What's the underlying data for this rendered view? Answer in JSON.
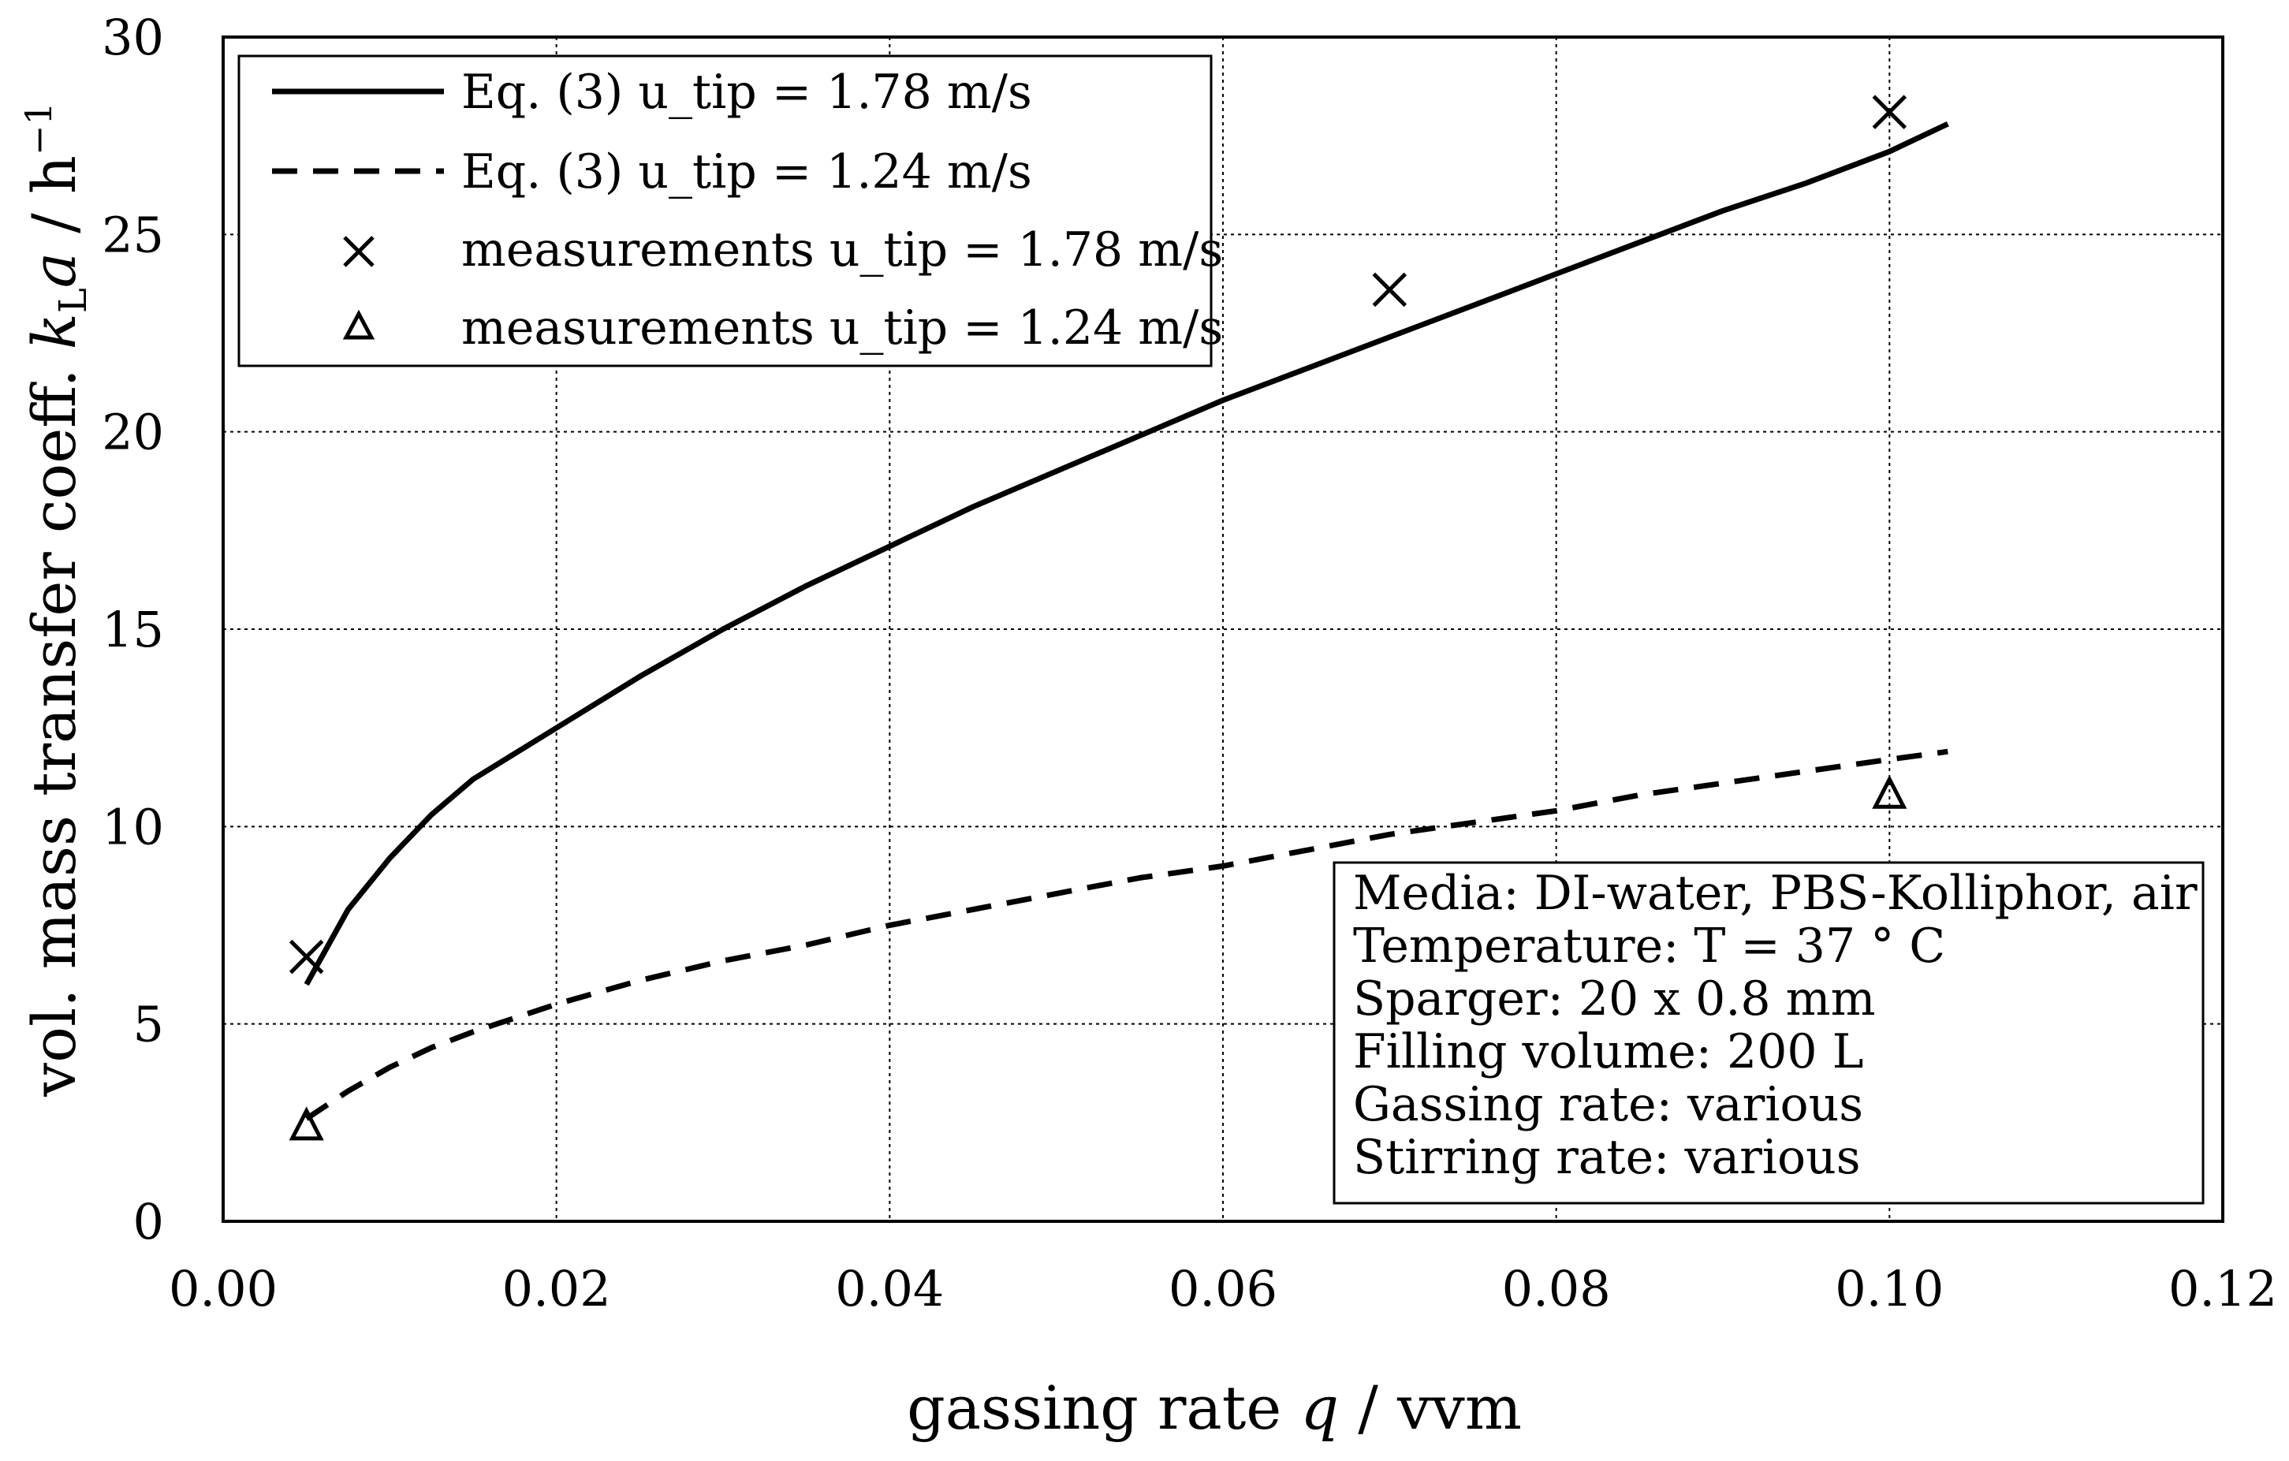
{
  "chart_data": {
    "type": "line",
    "xlabel_prefix": "gassing rate ",
    "xlabel_symbol": "q",
    "xlabel_suffix": " / vvm",
    "ylabel_prefix": "vol. mass transfer coeff. ",
    "ylabel_k": "k",
    "ylabel_sub": "L",
    "ylabel_a": "a",
    "ylabel_unit": " / h",
    "ylabel_exp": "−1",
    "xlim": [
      0,
      0.12
    ],
    "ylim": [
      0,
      30
    ],
    "x_ticks": [
      0.0,
      0.02,
      0.04,
      0.06,
      0.08,
      0.1,
      0.12
    ],
    "x_tick_labels": [
      "0.00",
      "0.02",
      "0.04",
      "0.06",
      "0.08",
      "0.10",
      "0.12"
    ],
    "y_ticks": [
      0,
      5,
      10,
      15,
      20,
      25,
      30
    ],
    "y_tick_labels": [
      "0",
      "5",
      "10",
      "15",
      "20",
      "25",
      "30"
    ],
    "grid": true,
    "legend_position": "top-left",
    "series": [
      {
        "name": "Eq. (3) u_tip = 1.78 m/s",
        "kind": "line",
        "style": "solid",
        "x": [
          0.005,
          0.0075,
          0.01,
          0.0125,
          0.015,
          0.02,
          0.025,
          0.03,
          0.035,
          0.04,
          0.045,
          0.05,
          0.055,
          0.06,
          0.065,
          0.07,
          0.075,
          0.08,
          0.085,
          0.09,
          0.095,
          0.1,
          0.1035
        ],
        "y": [
          6.0,
          7.9,
          9.2,
          10.3,
          11.2,
          12.5,
          13.8,
          15.0,
          16.1,
          17.1,
          18.1,
          19.0,
          19.9,
          20.8,
          21.6,
          22.4,
          23.2,
          24.0,
          24.8,
          25.6,
          26.3,
          27.1,
          27.8
        ]
      },
      {
        "name": "Eq. (3) u_tip = 1.24 m/s",
        "kind": "line",
        "style": "dashed",
        "x": [
          0.005,
          0.0075,
          0.01,
          0.0125,
          0.015,
          0.02,
          0.025,
          0.03,
          0.035,
          0.04,
          0.045,
          0.05,
          0.055,
          0.06,
          0.065,
          0.07,
          0.075,
          0.08,
          0.085,
          0.09,
          0.095,
          0.1,
          0.1035
        ],
        "y": [
          2.6,
          3.3,
          3.9,
          4.4,
          4.8,
          5.5,
          6.1,
          6.6,
          7.0,
          7.5,
          7.9,
          8.3,
          8.7,
          9.0,
          9.4,
          9.8,
          10.1,
          10.4,
          10.8,
          11.1,
          11.4,
          11.7,
          11.9
        ]
      },
      {
        "name": "measurements u_tip = 1.78 m/s",
        "kind": "scatter",
        "marker": "x",
        "x": [
          0.005,
          0.07,
          0.1
        ],
        "y": [
          6.7,
          23.6,
          28.1
        ]
      },
      {
        "name": "measurements u_tip = 1.24 m/s",
        "kind": "scatter",
        "marker": "triangle",
        "x": [
          0.005,
          0.1
        ],
        "y": [
          2.4,
          10.8
        ]
      }
    ],
    "annotation_lines": [
      "Media: DI-water, PBS-Kolliphor, air",
      "Temperature: T = 37 °  C",
      "Sparger: 20 x 0.8 mm",
      "Filling volume: 200 L",
      "Gassing rate: various",
      "Stirring rate: various"
    ]
  }
}
